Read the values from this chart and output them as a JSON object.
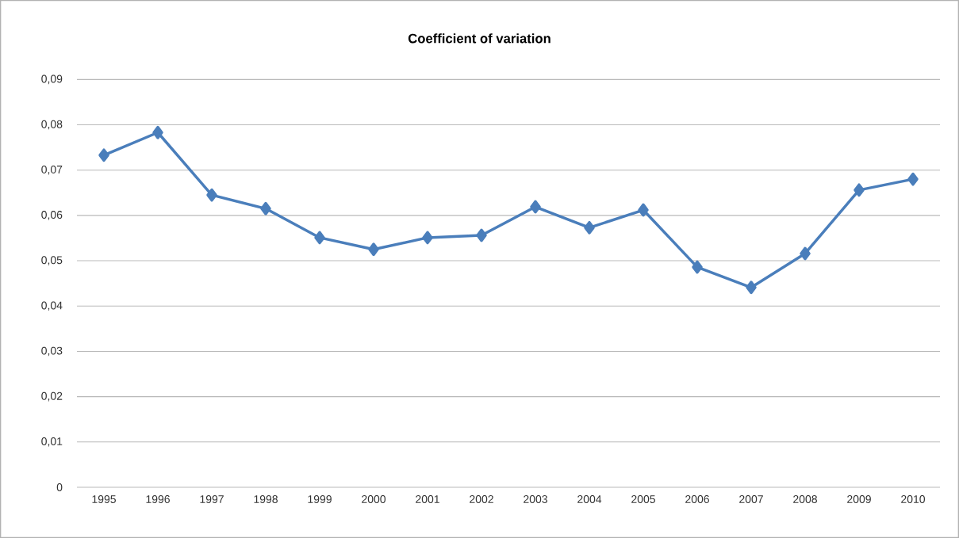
{
  "chart_data": {
    "type": "line",
    "title": "Coefficient of variation",
    "categories": [
      "1995",
      "1996",
      "1997",
      "1998",
      "1999",
      "2000",
      "2001",
      "2002",
      "2003",
      "2004",
      "2005",
      "2006",
      "2007",
      "2008",
      "2009",
      "2010"
    ],
    "values": [
      0.0733,
      0.0783,
      0.0645,
      0.0615,
      0.0551,
      0.0525,
      0.0551,
      0.0556,
      0.0619,
      0.0573,
      0.0612,
      0.0486,
      0.0441,
      0.0516,
      0.0656,
      0.068
    ],
    "color": "#4a7ebb",
    "marker": "diamond",
    "line_style": "solid",
    "ylim": [
      0,
      0.09
    ],
    "yticks": [
      0,
      {
        "value": 0.01,
        "label": "0,01"
      },
      {
        "value": 0.02,
        "label": "0,02"
      },
      {
        "value": 0.03,
        "label": "0,03"
      },
      {
        "value": 0.04,
        "label": "0,04"
      },
      {
        "value": 0.05,
        "label": "0,05"
      },
      {
        "value": 0.06,
        "label": "0,06"
      },
      {
        "value": 0.07,
        "label": "0,07"
      },
      {
        "value": 0.08,
        "label": "0,08"
      },
      {
        "value": 0.09,
        "label": "0,09"
      }
    ],
    "grid": "y"
  }
}
